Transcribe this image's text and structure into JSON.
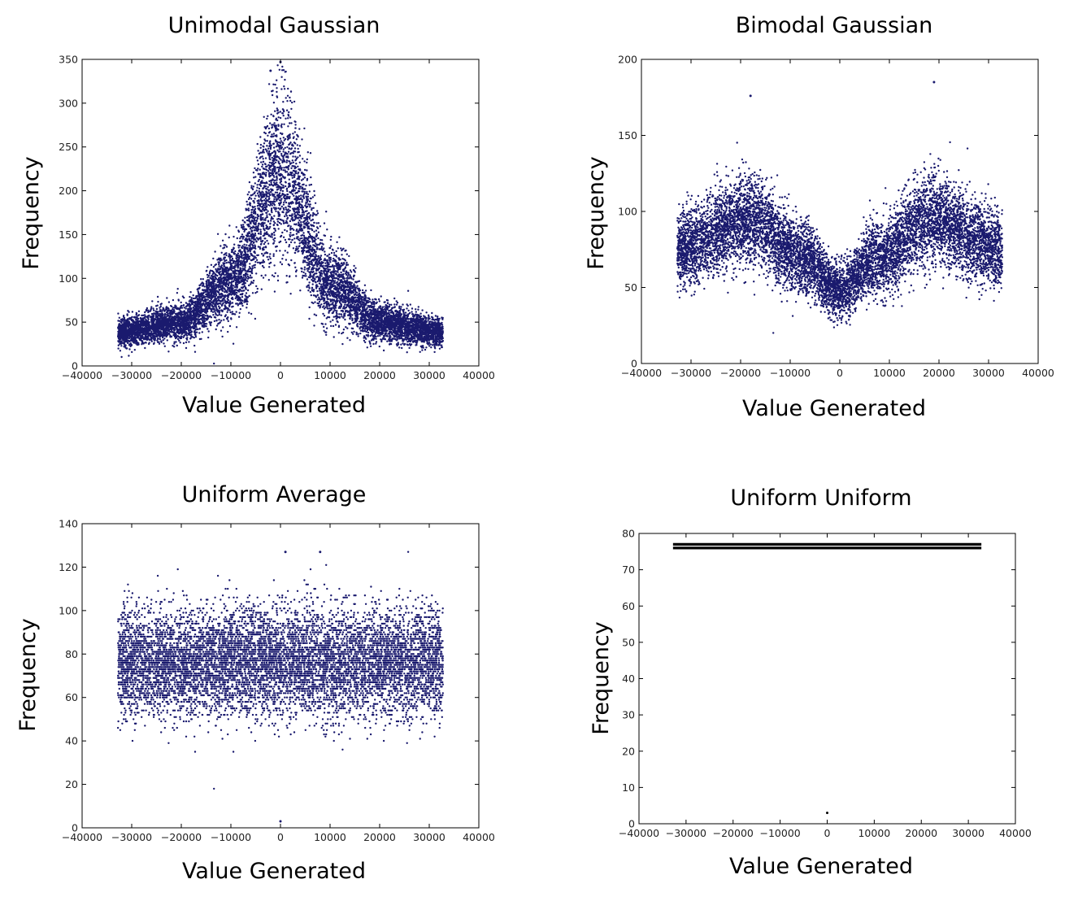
{
  "chart_data": [
    {
      "type": "scatter",
      "title": "Unimodal Gaussian",
      "xlabel": "Value Generated",
      "ylabel": "Frequency",
      "xlim": [
        -40000,
        40000
      ],
      "ylim": [
        0,
        350
      ],
      "xticks": [
        "−40000",
        "−30000",
        "−20000",
        "−10000",
        "0",
        "10000",
        "20000",
        "30000",
        "40000"
      ],
      "yticks": [
        "0",
        "50",
        "100",
        "150",
        "200",
        "250",
        "300",
        "350"
      ],
      "marker_color": "#1a1a6e",
      "x_range": [
        -32768,
        32767
      ],
      "distribution": "unimodal",
      "description_points": [
        {
          "x": -32768,
          "y": 38
        },
        {
          "x": -20000,
          "y": 50
        },
        {
          "x": -10000,
          "y": 95
        },
        {
          "x": 0,
          "y": 220
        },
        {
          "x": 10000,
          "y": 95
        },
        {
          "x": 20000,
          "y": 50
        },
        {
          "x": 32767,
          "y": 38
        }
      ],
      "outliers": [
        {
          "x": -2000,
          "y": 337
        },
        {
          "x": 0,
          "y": 347
        }
      ]
    },
    {
      "type": "scatter",
      "title": "Bimodal Gaussian",
      "xlabel": "Value Generated",
      "ylabel": "Frequency",
      "xlim": [
        -40000,
        40000
      ],
      "ylim": [
        0,
        200
      ],
      "xticks": [
        "−40000",
        "−30000",
        "−20000",
        "−10000",
        "0",
        "10000",
        "20000",
        "30000",
        "40000"
      ],
      "yticks": [
        "0",
        "50",
        "100",
        "150",
        "200"
      ],
      "marker_color": "#1a1a6e",
      "x_range": [
        -32768,
        32767
      ],
      "distribution": "bimodal",
      "description_points": [
        {
          "x": -32768,
          "y": 75
        },
        {
          "x": -18000,
          "y": 95
        },
        {
          "x": -8000,
          "y": 70
        },
        {
          "x": 0,
          "y": 48
        },
        {
          "x": 8000,
          "y": 70
        },
        {
          "x": 18000,
          "y": 95
        },
        {
          "x": 32767,
          "y": 75
        }
      ],
      "outliers": [
        {
          "x": 19000,
          "y": 185
        },
        {
          "x": -18000,
          "y": 176
        }
      ]
    },
    {
      "type": "scatter",
      "title": "Uniform Average",
      "xlabel": "Value Generated",
      "ylabel": "Frequency",
      "xlim": [
        -40000,
        40000
      ],
      "ylim": [
        0,
        140
      ],
      "xticks": [
        "−40000",
        "−30000",
        "−20000",
        "−10000",
        "0",
        "10000",
        "20000",
        "30000",
        "40000"
      ],
      "yticks": [
        "0",
        "20",
        "40",
        "60",
        "80",
        "100",
        "120",
        "140"
      ],
      "marker_color": "#1a1a6e",
      "x_range": [
        -32768,
        32767
      ],
      "distribution": "uniform-noisy",
      "description_points": [
        {
          "x": -32768,
          "y": 76
        },
        {
          "x": 0,
          "y": 76
        },
        {
          "x": 32767,
          "y": 76
        }
      ],
      "outliers": [
        {
          "x": 0,
          "y": 3
        },
        {
          "x": 8000,
          "y": 127
        },
        {
          "x": 1000,
          "y": 127
        }
      ]
    },
    {
      "type": "scatter",
      "title": "Uniform Uniform",
      "xlabel": "Value Generated",
      "ylabel": "Frequency",
      "xlim": [
        -40000,
        40000
      ],
      "ylim": [
        0,
        80
      ],
      "xticks": [
        "−40000",
        "−30000",
        "−20000",
        "−10000",
        "0",
        "10000",
        "20000",
        "30000",
        "40000"
      ],
      "yticks": [
        "0",
        "10",
        "20",
        "30",
        "40",
        "50",
        "60",
        "70",
        "80"
      ],
      "marker_color": "#000000",
      "x_range": [
        -32768,
        32767
      ],
      "distribution": "flat",
      "lines": [
        {
          "x0": -32768,
          "x1": 32767,
          "y": 77
        },
        {
          "x0": -32768,
          "x1": 32767,
          "y": 76
        }
      ],
      "outliers": [
        {
          "x": 0,
          "y": 3
        }
      ]
    }
  ]
}
